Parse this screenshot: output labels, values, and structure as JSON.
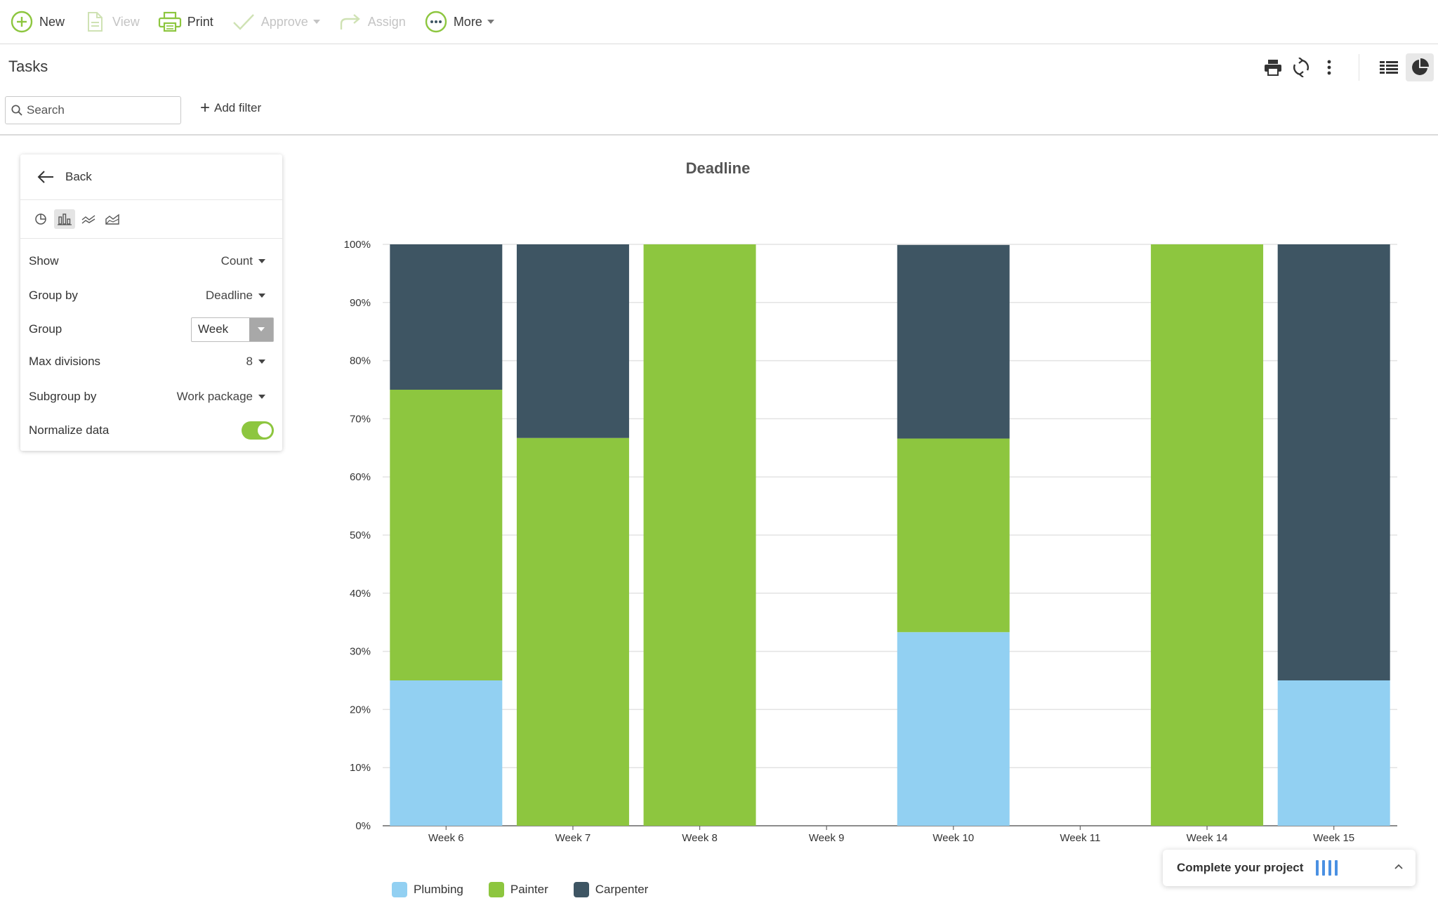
{
  "toolbar": {
    "new_label": "New",
    "view_label": "View",
    "print_label": "Print",
    "approve_label": "Approve",
    "assign_label": "Assign",
    "more_label": "More"
  },
  "header": {
    "title": "Tasks"
  },
  "search": {
    "placeholder": "Search"
  },
  "filter": {
    "add_label": "Add filter"
  },
  "panel": {
    "back_label": "Back",
    "show_label": "Show",
    "show_value": "Count",
    "group_by_label": "Group by",
    "group_by_value": "Deadline",
    "group_label": "Group",
    "group_value": "Week",
    "max_div_label": "Max divisions",
    "max_div_value": "8",
    "subgroup_label": "Subgroup by",
    "subgroup_value": "Work package",
    "normalize_label": "Normalize data",
    "normalize_on": true
  },
  "chart_data": {
    "type": "bar",
    "stacked": true,
    "normalized": true,
    "title": "Deadline",
    "xlabel": "",
    "ylabel": "",
    "ylim": [
      0,
      100
    ],
    "yticks": [
      "0%",
      "10%",
      "20%",
      "30%",
      "40%",
      "50%",
      "60%",
      "70%",
      "80%",
      "90%",
      "100%"
    ],
    "grid": true,
    "legend": "bottom-left",
    "categories": [
      "Week 6",
      "Week 7",
      "Week 8",
      "Week 9",
      "Week 10",
      "Week 11",
      "Week 14",
      "Week 15"
    ],
    "series": [
      {
        "name": "Plumbing",
        "color": "#92d0f2",
        "values": [
          25,
          0,
          0,
          0,
          33.3,
          0,
          0,
          25
        ]
      },
      {
        "name": "Painter",
        "color": "#8dc63f",
        "values": [
          50,
          66.7,
          100,
          0,
          33.3,
          0,
          100,
          0
        ]
      },
      {
        "name": "Carpenter",
        "color": "#3e5563",
        "values": [
          25,
          33.3,
          0,
          0,
          33.3,
          0,
          0,
          75
        ]
      }
    ]
  },
  "widget": {
    "text": "Complete your project"
  },
  "colors": {
    "accent": "#8dc63f",
    "disabled": "#c4c4c4"
  }
}
